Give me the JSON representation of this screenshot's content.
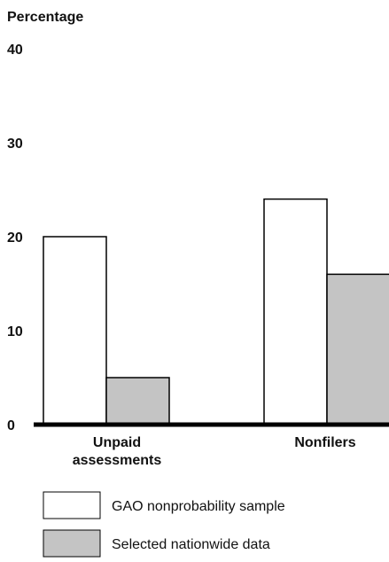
{
  "chart_data": {
    "type": "bar",
    "ylabel": "Percentage",
    "ylim": [
      0,
      40
    ],
    "yticks": [
      0,
      10,
      20,
      30,
      40
    ],
    "grid": false,
    "legend_position": "bottom",
    "categories": [
      {
        "lines": [
          "Unpaid",
          "assessments"
        ]
      },
      {
        "lines": [
          "Nonfilers"
        ]
      }
    ],
    "series": [
      {
        "name": "GAO nonprobability sample",
        "color": "#ffffff",
        "values": [
          20,
          24
        ]
      },
      {
        "name": "Selected nationwide data",
        "color": "#c4c4c4",
        "values": [
          5,
          16
        ]
      }
    ]
  }
}
